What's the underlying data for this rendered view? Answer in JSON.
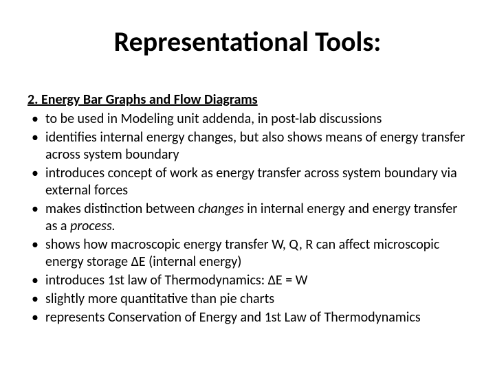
{
  "title": "Representational Tools:",
  "subtitle": "2. Energy Bar Graphs and Flow Diagrams",
  "bullets": [
    {
      "pre": "to be used in Modeling unit addenda, in post-lab discussions"
    },
    {
      "pre": "identifies internal energy changes, but also shows means of energy transfer across system boundary"
    },
    {
      "pre": "introduces concept of work as energy transfer across system boundary via external forces"
    },
    {
      "pre": "makes distinction between ",
      "italic1": "changes",
      "mid": "  in internal energy and energy transfer as a ",
      "italic2": "process."
    },
    {
      "pre": "shows how macroscopic energy transfer W, Q, R can affect microscopic energy storage ΔE (internal energy)"
    },
    {
      "pre": "introduces 1st law of Thermodynamics:  ΔE = W"
    },
    {
      "pre": "slightly more quantitative than pie charts"
    },
    {
      "pre": "represents Conservation of Energy and 1st Law of Thermodynamics"
    }
  ]
}
